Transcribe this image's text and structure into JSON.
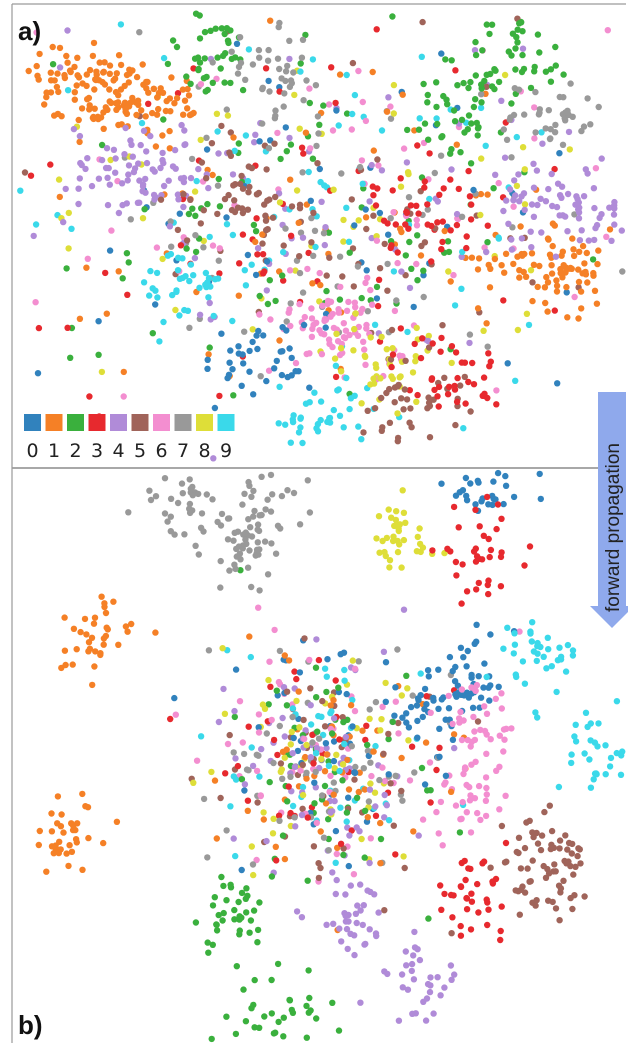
{
  "chart_data": [
    {
      "type": "scatter",
      "panel_label": "a)",
      "legend": {
        "placement": "bottom-left",
        "labels": [
          "0",
          "1",
          "2",
          "3",
          "4",
          "5",
          "6",
          "7",
          "8",
          "9"
        ]
      },
      "clusters": [
        {
          "label": "1",
          "x": [
            -0.78,
            -0.72,
            -0.62,
            -0.55
          ],
          "y": [
            0.72,
            0.62,
            0.55,
            0.6
          ]
        },
        {
          "label": "2",
          "x": [
            -0.35,
            0.65,
            0.48
          ],
          "y": [
            0.78,
            0.78,
            0.55
          ]
        },
        {
          "label": "1",
          "x": [
            0.7,
            0.82
          ],
          "y": [
            -0.1,
            -0.15
          ]
        },
        {
          "label": "4",
          "x": [
            -0.62,
            -0.55,
            0.7,
            0.9
          ],
          "y": [
            0.32,
            0.25,
            0.15,
            0.12
          ]
        },
        {
          "label": "7",
          "x": [
            -0.15,
            0.75
          ],
          "y": [
            0.7,
            0.5
          ]
        },
        {
          "label": "6",
          "x": [
            0.02,
            0.1
          ],
          "y": [
            -0.35,
            -0.42
          ]
        },
        {
          "label": "9",
          "x": [
            0.0,
            -0.42
          ],
          "y": [
            -0.78,
            -0.22
          ]
        },
        {
          "label": "0",
          "x": [
            -0.2
          ],
          "y": [
            -0.55
          ]
        },
        {
          "label": "8",
          "x": [
            0.2
          ],
          "y": [
            -0.55
          ]
        },
        {
          "label": "5",
          "x": [
            0.3,
            -0.25
          ],
          "y": [
            -0.7,
            0.18
          ]
        },
        {
          "label": "3",
          "x": [
            0.42,
            0.35
          ],
          "y": [
            -0.6,
            0.1
          ]
        }
      ],
      "xlim": [
        -1,
        1
      ],
      "ylim": [
        -1,
        1
      ],
      "grid": false
    },
    {
      "type": "scatter",
      "panel_label": "b)",
      "clusters": [
        {
          "label": "1",
          "x": [
            -0.75,
            -0.82
          ],
          "y": [
            0.42,
            -0.28
          ]
        },
        {
          "label": "7",
          "x": [
            -0.45,
            -0.18,
            -0.25
          ],
          "y": [
            0.88,
            0.88,
            0.72
          ]
        },
        {
          "label": "8",
          "x": [
            0.25
          ],
          "y": [
            0.75
          ]
        },
        {
          "label": "0",
          "x": [
            0.55,
            0.5,
            0.35
          ],
          "y": [
            0.95,
            0.28,
            0.15
          ]
        },
        {
          "label": "3",
          "x": [
            0.52,
            0.48
          ],
          "y": [
            0.72,
            -0.5
          ]
        },
        {
          "label": "9",
          "x": [
            0.72,
            0.92
          ],
          "y": [
            0.35,
            0.02
          ]
        },
        {
          "label": "6",
          "x": [
            0.52,
            0.48
          ],
          "y": [
            0.1,
            -0.15
          ]
        },
        {
          "label": "5",
          "x": [
            0.72,
            0.78
          ],
          "y": [
            -0.32,
            -0.45
          ]
        },
        {
          "label": "4",
          "x": [
            0.32,
            0.1
          ],
          "y": [
            -0.78,
            -0.55
          ]
        },
        {
          "label": "2",
          "x": [
            -0.3,
            -0.12
          ],
          "y": [
            -0.55,
            -0.92
          ]
        }
      ],
      "xlim": [
        -1,
        1
      ],
      "ylim": [
        -1,
        1
      ],
      "grid": false
    }
  ],
  "annotation": {
    "arrow_text": "forward propagation"
  },
  "colors": {
    "palette": [
      "#3182bd",
      "#f58026",
      "#3ab03d",
      "#e7292e",
      "#b08bd8",
      "#a0645a",
      "#f38ed0",
      "#999999",
      "#dede38",
      "#3ad9ea"
    ],
    "arrow_fill": "#8fa9ec"
  }
}
